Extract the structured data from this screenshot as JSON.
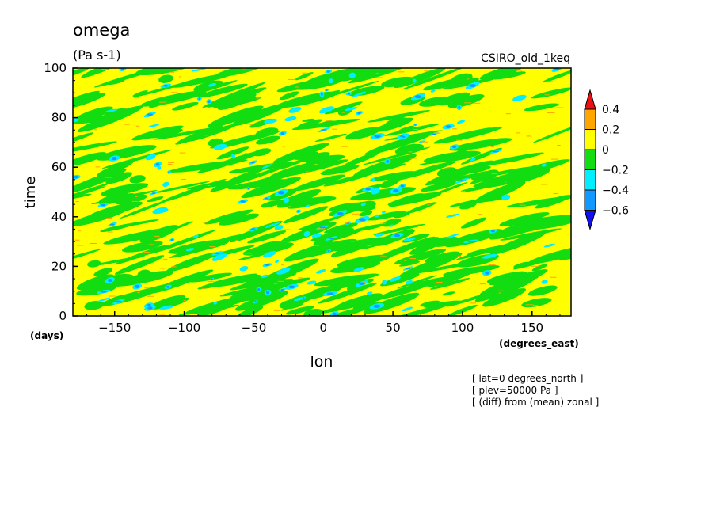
{
  "chart_data": {
    "type": "heatmap",
    "title": "omega",
    "units": "(Pa s-1)",
    "model": "CSIRO_old_1keq",
    "xlabel": "lon",
    "x_units": "(degrees_east)",
    "ylabel": "time",
    "y_units": "(days)",
    "xlim": [
      -180,
      178
    ],
    "ylim": [
      0,
      100
    ],
    "x_ticks": [
      {
        "value": -150,
        "label": "−150"
      },
      {
        "value": -100,
        "label": "−100"
      },
      {
        "value": -50,
        "label": "−50"
      },
      {
        "value": 0,
        "label": "0"
      },
      {
        "value": 50,
        "label": "50"
      },
      {
        "value": 100,
        "label": "100"
      },
      {
        "value": 150,
        "label": "150"
      }
    ],
    "y_ticks": [
      {
        "value": 0,
        "label": "0"
      },
      {
        "value": 20,
        "label": "20"
      },
      {
        "value": 40,
        "label": "40"
      },
      {
        "value": 60,
        "label": "60"
      },
      {
        "value": 80,
        "label": "80"
      },
      {
        "value": 100,
        "label": "100"
      }
    ],
    "colorbar": {
      "levels": [
        {
          "label": "0.4"
        },
        {
          "label": "0.2"
        },
        {
          "label": "0"
        },
        {
          "label": "−0.2"
        },
        {
          "label": "−0.4"
        },
        {
          "label": "−0.6"
        }
      ],
      "colors": {
        "above_0.4": "#ee1010",
        "0.2_to_0.4": "#ffa500",
        "0_to_0.2": "#ffff00",
        "-0.2_to_0": "#11dd11",
        "-0.4_to_-0.2": "#00eeff",
        "-0.6_to_-0.4": "#1199ff",
        "below_-0.6": "#1010ee"
      }
    },
    "notes": [
      "[ lat=0 degrees_north ]",
      "[ plev=50000 Pa ]",
      "[ (diff) from (mean) zonal ]"
    ],
    "field_description": "mostly 0 to 0.2 (yellow) with streaks of -0.2 to 0 (green) and patches of -0.4 to -0.6 (cyan/blue), sparse orange 0.2-0.4 specks"
  }
}
